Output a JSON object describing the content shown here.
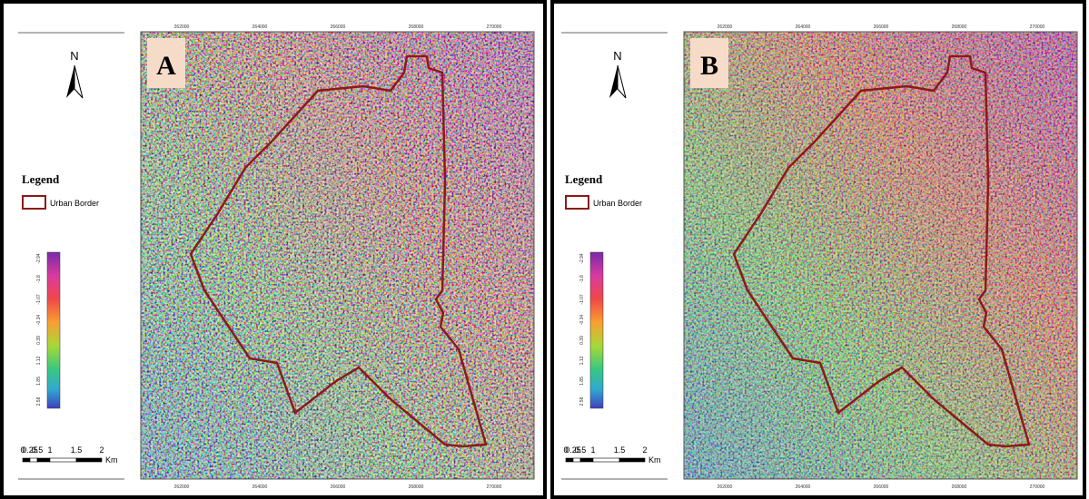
{
  "panels": [
    {
      "label": "A"
    },
    {
      "label": "B"
    }
  ],
  "north": "N",
  "legend": {
    "title": "Legend",
    "item": "Urban Border"
  },
  "colorbar": {
    "labels": [
      -2.94,
      -1.8,
      -1.07,
      -0.34,
      0.39,
      1.12,
      1.85,
      2.58
    ]
  },
  "scale_bar": {
    "labels": [
      "0",
      "0.25",
      "0.5",
      "1",
      "1.5",
      "2"
    ],
    "unit": "Km"
  },
  "coordinates": {
    "top": [
      262000,
      264000,
      266000,
      268000,
      270000
    ]
  }
}
